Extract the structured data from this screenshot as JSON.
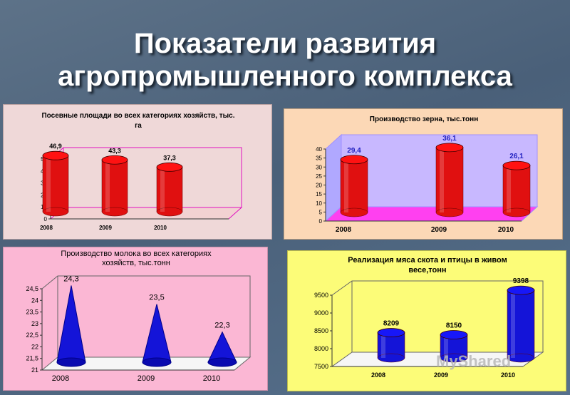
{
  "title_line1": "Показатели развития",
  "title_line2": "агропромышленного комплекса",
  "watermark": "MyShared",
  "chart_data": [
    {
      "type": "bar",
      "shape": "cylinder",
      "title": "Посевные площади во всех категориях хозяйств, тыс. га",
      "title_lines": [
        "Посевные площади во всех категориях хозяйств, тыс.",
        "га"
      ],
      "categories": [
        "2008",
        "2009",
        "2010"
      ],
      "values": [
        46.9,
        43.3,
        37.3
      ],
      "value_labels": [
        "46,9",
        "43,3",
        "37,3"
      ],
      "ylim": [
        0,
        50
      ],
      "yticks": [
        "0",
        "10",
        "20",
        "30",
        "40",
        "50"
      ],
      "bar_color": "#e01010",
      "grid": false
    },
    {
      "type": "bar",
      "shape": "cylinder",
      "title": "Производство зерна, тыс.тонн",
      "title_lines": [
        "Производство зерна, тыс.тонн"
      ],
      "categories": [
        "2008",
        "2009",
        "2010"
      ],
      "values": [
        29.4,
        36.1,
        26.1
      ],
      "value_labels": [
        "29,4",
        "36,1",
        "26,1"
      ],
      "ylim": [
        0,
        40
      ],
      "yticks": [
        "0",
        "5",
        "10",
        "15",
        "20",
        "25",
        "30",
        "35",
        "40"
      ],
      "bar_color": "#e01010",
      "label_color": "#2020c0",
      "grid": false
    },
    {
      "type": "bar",
      "shape": "cone",
      "title": "Производство молока во всех категориях хозяйств, тыс.тонн",
      "title_lines": [
        "Производство молока во всех категориях",
        "хозяйств, тыс.тонн"
      ],
      "categories": [
        "2008",
        "2009",
        "2010"
      ],
      "values": [
        24.3,
        23.5,
        22.3
      ],
      "value_labels": [
        "24,3",
        "23,5",
        "22,3"
      ],
      "ylim": [
        21,
        24.5
      ],
      "yticks": [
        "21",
        "21,5",
        "22",
        "22,5",
        "23",
        "23,5",
        "24",
        "24,5"
      ],
      "bar_color": "#1414d8",
      "grid": false
    },
    {
      "type": "bar",
      "shape": "cylinder",
      "title": "Реализация мяса скота и птицы в живом весе,тонн",
      "title_lines": [
        "Реализация мяса скота и птицы в живом",
        "весе,тонн"
      ],
      "categories": [
        "2008",
        "2009",
        "2010"
      ],
      "values": [
        8209,
        8150,
        9398
      ],
      "value_labels": [
        "8209",
        "8150",
        "9398"
      ],
      "ylim": [
        7500,
        9500
      ],
      "yticks": [
        "7500",
        "8000",
        "8500",
        "9000",
        "9500"
      ],
      "bar_color": "#1414d8",
      "grid": false
    }
  ]
}
